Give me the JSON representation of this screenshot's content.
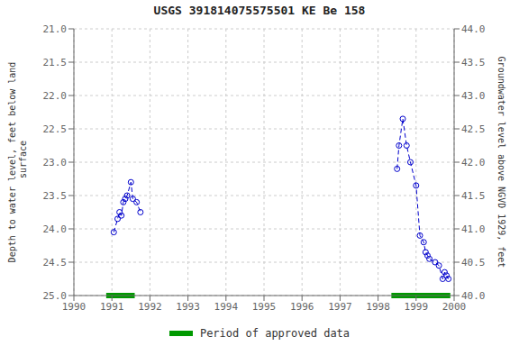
{
  "chart_data": {
    "type": "line",
    "title": "USGS 391814075575501 KE Be 158",
    "y_label": "Depth to water level, feet below land\n surface",
    "y2_label": "Groundwater level above NGVD 1929, feet",
    "xlim": [
      1990,
      2000
    ],
    "xticks": [
      1990,
      1991,
      1992,
      1993,
      1994,
      1995,
      1996,
      1997,
      1998,
      1999,
      2000
    ],
    "ylim": [
      25.0,
      21.0
    ],
    "yticks": [
      {
        "value": 21.0,
        "label": "21.0"
      },
      {
        "value": 21.5,
        "label": "21.5"
      },
      {
        "value": 22.0,
        "label": "22.0"
      },
      {
        "value": 22.5,
        "label": "22.5"
      },
      {
        "value": 23.0,
        "label": "23.0"
      },
      {
        "value": 23.5,
        "label": "23.5"
      },
      {
        "value": 24.0,
        "label": "24.0"
      },
      {
        "value": 24.5,
        "label": "24.5"
      },
      {
        "value": 25.0,
        "label": "25.0"
      }
    ],
    "y2lim": [
      40.0,
      44.0
    ],
    "y2ticks": [
      {
        "value": 44.0,
        "label": "44.0"
      },
      {
        "value": 43.5,
        "label": "43.5"
      },
      {
        "value": 43.0,
        "label": "43.0"
      },
      {
        "value": 42.5,
        "label": "42.5"
      },
      {
        "value": 42.0,
        "label": "42.0"
      },
      {
        "value": 41.5,
        "label": "41.5"
      },
      {
        "value": 41.0,
        "label": "41.0"
      },
      {
        "value": 40.5,
        "label": "40.5"
      },
      {
        "value": 40.0,
        "label": "40.0"
      }
    ],
    "grid": true,
    "series": [
      {
        "color": "#0000CC",
        "line_style": "dashed",
        "marker": "open_circle",
        "x": [
          1991.05,
          1991.15,
          1991.2,
          1991.25,
          1991.3,
          1991.35,
          1991.4,
          1991.5,
          1991.55,
          1991.65,
          1991.75
        ],
        "values": [
          24.05,
          23.85,
          23.75,
          23.8,
          23.6,
          23.55,
          23.5,
          23.3,
          23.55,
          23.6,
          23.75
        ]
      },
      {
        "color": "#0000CC",
        "line_style": "dashed",
        "marker": "open_circle",
        "x": [
          1998.5,
          1998.55,
          1998.65,
          1998.75,
          1998.85,
          1999.0,
          1999.1,
          1999.2,
          1999.25,
          1999.3,
          1999.35,
          1999.5,
          1999.6,
          1999.7,
          1999.75,
          1999.8,
          1999.85
        ],
        "values": [
          23.1,
          22.75,
          22.35,
          22.75,
          23.0,
          23.35,
          24.1,
          24.2,
          24.35,
          24.4,
          24.45,
          24.5,
          24.55,
          24.75,
          24.65,
          24.7,
          24.75
        ]
      }
    ],
    "periods": {
      "name": "Period of approved data",
      "color": "#009900",
      "y": 25.0,
      "ranges": [
        [
          1990.85,
          1991.6
        ],
        [
          1998.35,
          1999.9
        ]
      ]
    }
  }
}
